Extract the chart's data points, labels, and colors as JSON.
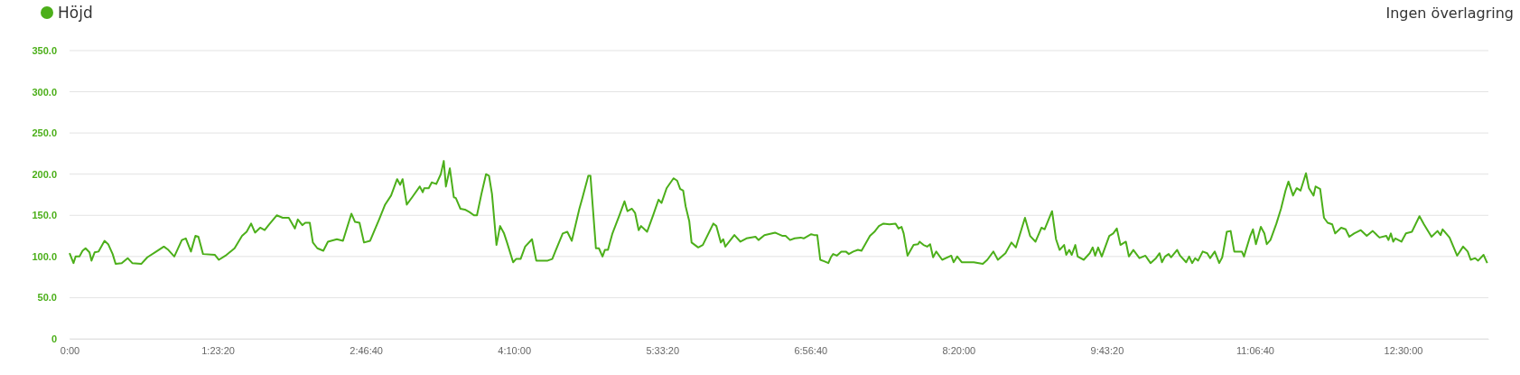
{
  "chart_data": {
    "type": "line",
    "legend": "top left",
    "grid": "y",
    "annotations": [
      "Ingen överlagring"
    ],
    "xlim": [
      0,
      13.3
    ],
    "ylim": [
      0,
      350
    ],
    "xticks": [
      {
        "value": 0,
        "label": "0:00"
      },
      {
        "value": 1.3889,
        "label": "1:23:20"
      },
      {
        "value": 2.7778,
        "label": "2:46:40"
      },
      {
        "value": 4.1667,
        "label": "4:10:00"
      },
      {
        "value": 5.5556,
        "label": "5:33:20"
      },
      {
        "value": 6.9444,
        "label": "6:56:40"
      },
      {
        "value": 8.3333,
        "label": "8:20:00"
      },
      {
        "value": 9.7222,
        "label": "9:43:20"
      },
      {
        "value": 11.1111,
        "label": "11:06:40"
      },
      {
        "value": 12.5,
        "label": "12:30:00"
      }
    ],
    "yticks": [
      0,
      {
        "value": 50,
        "label": "50.0"
      },
      {
        "value": 100,
        "label": "100.0"
      },
      {
        "value": 150,
        "label": "150.0"
      },
      {
        "value": 200,
        "label": "200.0"
      },
      {
        "value": 250,
        "label": "250.0"
      },
      {
        "value": 300,
        "label": "300.0"
      },
      {
        "value": 350,
        "label": "350.0"
      }
    ],
    "series": [
      {
        "name": "Höjd",
        "color": "#4caf1a",
        "x": [
          0,
          0.037,
          0.057,
          0.093,
          0.122,
          0.15,
          0.187,
          0.206,
          0.235,
          0.271,
          0.328,
          0.362,
          0.404,
          0.432,
          0.489,
          0.545,
          0.588,
          0.672,
          0.729,
          0.813,
          0.884,
          0.926,
          0.982,
          1.053,
          1.09,
          1.138,
          1.18,
          1.208,
          1.251,
          1.363,
          1.4,
          1.462,
          1.547,
          1.617,
          1.66,
          1.702,
          1.739,
          1.787,
          1.829,
          1.871,
          1.942,
          1.998,
          2.055,
          2.112,
          2.14,
          2.182,
          2.21,
          2.252,
          2.281,
          2.323,
          2.379,
          2.422,
          2.506,
          2.563,
          2.642,
          2.676,
          2.718,
          2.76,
          2.817,
          2.902,
          2.958,
          3.014,
          3.071,
          3.099,
          3.122,
          3.161,
          3.212,
          3.283,
          3.311,
          3.325,
          3.367,
          3.396,
          3.438,
          3.48,
          3.508,
          3.528,
          3.565,
          3.602,
          3.621,
          3.664,
          3.706,
          3.748,
          3.791,
          3.819,
          3.861,
          3.904,
          3.932,
          3.96,
          4.002,
          4.036,
          4.073,
          4.101,
          4.158,
          4.186,
          4.228,
          4.271,
          4.335,
          4.375,
          4.482,
          4.525,
          4.553,
          4.623,
          4.666,
          4.708,
          4.779,
          4.807,
          4.863,
          4.883,
          4.934,
          4.962,
          4.996,
          5.018,
          5.047,
          5.089,
          5.154,
          5.202,
          5.23,
          5.272,
          5.301,
          5.335,
          5.357,
          5.414,
          5.47,
          5.521,
          5.549,
          5.597,
          5.662,
          5.696,
          5.724,
          5.752,
          5.775,
          5.809,
          5.831,
          5.893,
          5.936,
          6.035,
          6.063,
          6.105,
          6.128,
          6.147,
          6.232,
          6.289,
          6.345,
          6.43,
          6.458,
          6.514,
          6.613,
          6.684,
          6.712,
          6.754,
          6.797,
          6.853,
          6.882,
          6.952,
          6.98,
          7.009,
          7.037,
          7.079,
          7.113,
          7.136,
          7.158,
          7.192,
          7.234,
          7.277,
          7.305,
          7.347,
          7.39,
          7.424,
          7.503,
          7.545,
          7.587,
          7.63,
          7.686,
          7.743,
          7.771,
          7.799,
          7.819,
          7.855,
          7.912,
          7.954,
          7.968,
          8.005,
          8.039,
          8.067,
          8.095,
          8.124,
          8.18,
          8.265,
          8.287,
          8.321,
          8.363,
          8.476,
          8.561,
          8.603,
          8.66,
          8.702,
          8.773,
          8.829,
          8.871,
          8.956,
          9.004,
          9.055,
          9.111,
          9.14,
          9.21,
          9.247,
          9.281,
          9.323,
          9.343,
          9.371,
          9.394,
          9.428,
          9.45,
          9.507,
          9.563,
          9.591,
          9.614,
          9.642,
          9.676,
          9.746,
          9.783,
          9.817,
          9.851,
          9.902,
          9.93,
          9.972,
          10.029,
          10.085,
          10.133,
          10.184,
          10.218,
          10.24,
          10.269,
          10.303,
          10.325,
          10.382,
          10.41,
          10.467,
          10.495,
          10.523,
          10.551,
          10.579,
          10.622,
          10.664,
          10.692,
          10.735,
          10.777,
          10.805,
          10.848,
          10.884,
          10.918,
          10.989,
          11.009,
          11.065,
          11.093,
          11.121,
          11.167,
          11.2,
          11.223,
          11.257,
          11.313,
          11.356,
          11.398,
          11.426,
          11.469,
          11.503,
          11.539,
          11.59,
          11.618,
          11.661,
          11.68,
          11.723,
          11.759,
          11.793,
          11.836,
          11.864,
          11.92,
          11.962,
          11.996,
          12.041,
          12.104,
          12.16,
          12.216,
          12.279,
          12.343,
          12.363,
          12.386,
          12.408,
          12.428,
          12.485,
          12.527,
          12.583,
          12.654,
          12.696,
          12.767,
          12.823,
          12.852,
          12.871,
          12.936,
          13.007,
          13.063,
          13.106,
          13.134,
          13.176,
          13.204,
          13.255,
          13.289
        ],
        "values": [
          104,
          92,
          100,
          100,
          107,
          110,
          105,
          95,
          105,
          106,
          119,
          115,
          103,
          91,
          92,
          98,
          92,
          91,
          99,
          106,
          112,
          108,
          100,
          120,
          122,
          106,
          125,
          124,
          103,
          102,
          96,
          101,
          110,
          125,
          130,
          140,
          129,
          135,
          132,
          139,
          150,
          147,
          147,
          134,
          145,
          138,
          141,
          141,
          117,
          110,
          107,
          118,
          121,
          119,
          152,
          142,
          141,
          117,
          119,
          145,
          163,
          174,
          194,
          187,
          194,
          163,
          172,
          185,
          178,
          183,
          183,
          190,
          188,
          200,
          216,
          185,
          207,
          172,
          171,
          158,
          157,
          154,
          150,
          150,
          176,
          200,
          198,
          176,
          114,
          137,
          128,
          117,
          93,
          97,
          97,
          112,
          121,
          95,
          95,
          97,
          106,
          128,
          130,
          119,
          158,
          171,
          198,
          198,
          110,
          110,
          100,
          108,
          108,
          128,
          150,
          167,
          155,
          158,
          153,
          132,
          137,
          130,
          150,
          169,
          165,
          183,
          195,
          192,
          182,
          180,
          161,
          143,
          117,
          111,
          114,
          140,
          137,
          117,
          121,
          112,
          126,
          118,
          122,
          124,
          120,
          126,
          129,
          125,
          125,
          120,
          122,
          123,
          122,
          127,
          126,
          126,
          96,
          94,
          92,
          99,
          103,
          101,
          106,
          106,
          103,
          106,
          108,
          107,
          125,
          130,
          137,
          140,
          139,
          140,
          134,
          136,
          128,
          101,
          114,
          115,
          118,
          114,
          112,
          115,
          99,
          106,
          96,
          101,
          93,
          100,
          93,
          93,
          91,
          96,
          106,
          96,
          104,
          117,
          111,
          147,
          125,
          118,
          135,
          133,
          155,
          121,
          108,
          114,
          102,
          108,
          102,
          114,
          100,
          96,
          104,
          111,
          101,
          111,
          100,
          125,
          128,
          134,
          114,
          118,
          100,
          108,
          98,
          101,
          92,
          98,
          104,
          93,
          100,
          103,
          99,
          108,
          101,
          93,
          100,
          92,
          98,
          95,
          106,
          104,
          98,
          106,
          92,
          99,
          130,
          131,
          106,
          106,
          100,
          124,
          133,
          115,
          136,
          128,
          115,
          120,
          140,
          158,
          180,
          191,
          174,
          183,
          180,
          201,
          183,
          174,
          185,
          182,
          147,
          141,
          139,
          128,
          135,
          133,
          124,
          128,
          132,
          125,
          131,
          123,
          125,
          120,
          128,
          118,
          122,
          118,
          128,
          130,
          149,
          139,
          124,
          131,
          126,
          133,
          123,
          101,
          112,
          106,
          96,
          98,
          95,
          102,
          92
        ]
      }
    ]
  }
}
